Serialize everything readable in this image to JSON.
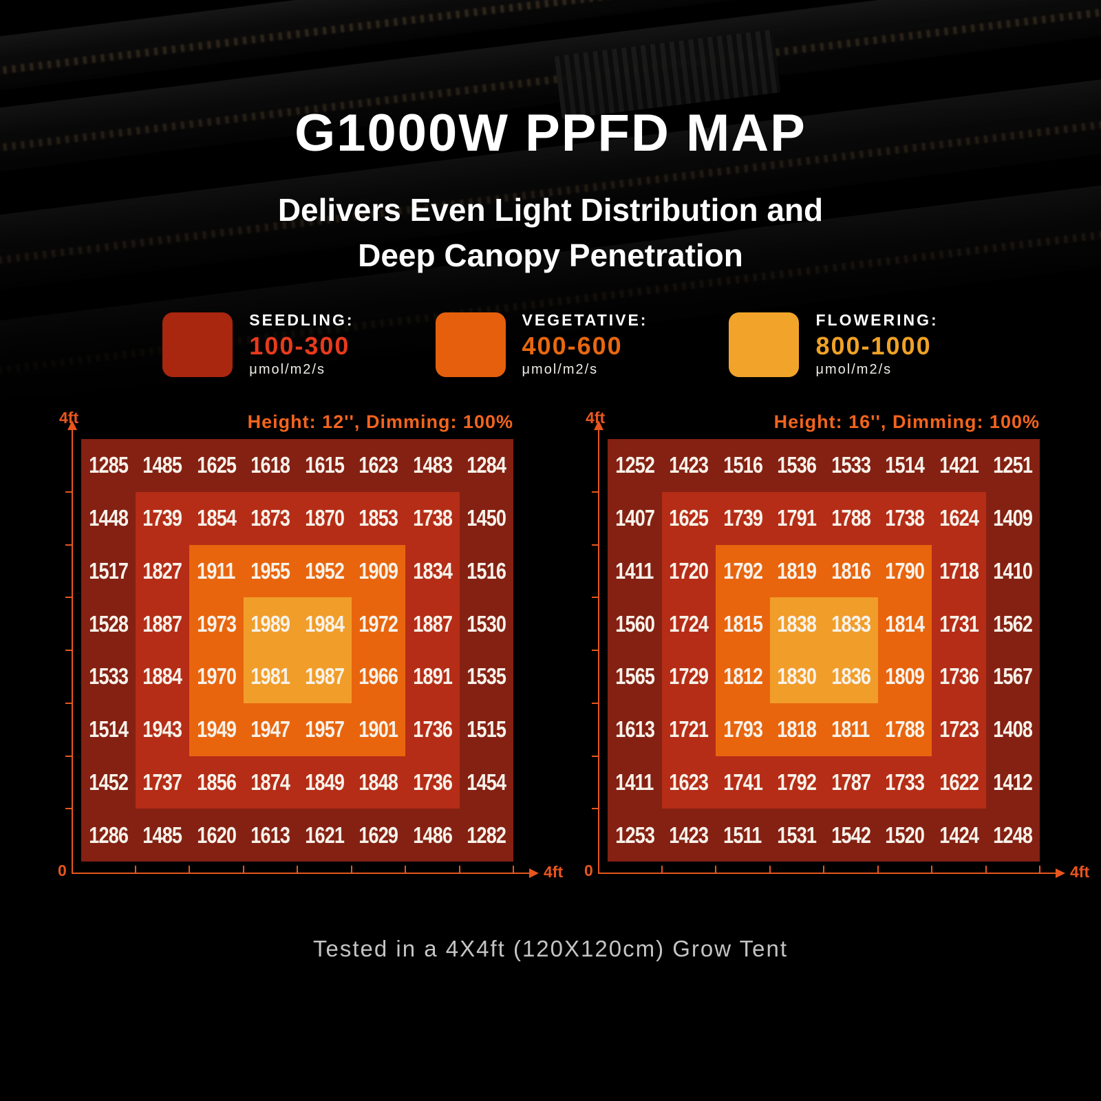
{
  "page": {
    "title": "G1000W PPFD MAP",
    "subtitle_line1": "Delivers Even Light Distribution and",
    "subtitle_line2": "Deep Canopy Penetration",
    "footer_note": "Tested in a 4X4ft (120X120cm) Grow Tent"
  },
  "legend": {
    "items": [
      {
        "label": "SEEDLING:",
        "range": "100-300",
        "unit": "μmol/m2/s",
        "swatch_color": "#a9260f",
        "range_color": "#e83a1c"
      },
      {
        "label": "VEGETATIVE:",
        "range": "400-600",
        "unit": "μmol/m2/s",
        "swatch_color": "#e55f0d",
        "range_color": "#e8670f"
      },
      {
        "label": "FLOWERING:",
        "range": "800-1000",
        "unit": "μmol/m2/s",
        "swatch_color": "#f2a42a",
        "range_color": "#f0a226"
      }
    ]
  },
  "axes": {
    "y_max_label": "4ft",
    "origin_label": "0",
    "x_max_label": "4ft"
  },
  "chart_data": [
    {
      "type": "heatmap",
      "title": "Height: 12'', Dimming: 100%",
      "unit": "μmol/m2/s",
      "grid_size": "8x8",
      "x_axis": {
        "min_label": "0",
        "max_label": "4ft"
      },
      "y_axis": {
        "min_label": "0",
        "max_label": "4ft"
      },
      "color_zones": [
        {
          "zone": "outer",
          "color": "#842113"
        },
        {
          "zone": "ring2",
          "color": "#b52d17"
        },
        {
          "zone": "ring3",
          "color": "#e8650e"
        },
        {
          "zone": "center",
          "color": "#f19d29"
        }
      ],
      "rows": [
        [
          1285,
          1485,
          1625,
          1618,
          1615,
          1623,
          1483,
          1284
        ],
        [
          1448,
          1739,
          1854,
          1873,
          1870,
          1853,
          1738,
          1450
        ],
        [
          1517,
          1827,
          1911,
          1955,
          1952,
          1909,
          1834,
          1516
        ],
        [
          1528,
          1887,
          1973,
          1989,
          1984,
          1972,
          1887,
          1530
        ],
        [
          1533,
          1884,
          1970,
          1981,
          1987,
          1966,
          1891,
          1535
        ],
        [
          1514,
          1943,
          1949,
          1947,
          1957,
          1901,
          1736,
          1515
        ],
        [
          1452,
          1737,
          1856,
          1874,
          1849,
          1848,
          1736,
          1454
        ],
        [
          1286,
          1485,
          1620,
          1613,
          1621,
          1629,
          1486,
          1282
        ]
      ]
    },
    {
      "type": "heatmap",
      "title": "Height: 16'', Dimming: 100%",
      "unit": "μmol/m2/s",
      "grid_size": "8x8",
      "x_axis": {
        "min_label": "0",
        "max_label": "4ft"
      },
      "y_axis": {
        "min_label": "0",
        "max_label": "4ft"
      },
      "color_zones": [
        {
          "zone": "outer",
          "color": "#842113"
        },
        {
          "zone": "ring2",
          "color": "#b52d17"
        },
        {
          "zone": "ring3",
          "color": "#e8650e"
        },
        {
          "zone": "center",
          "color": "#f19d29"
        }
      ],
      "rows": [
        [
          1252,
          1423,
          1516,
          1536,
          1533,
          1514,
          1421,
          1251
        ],
        [
          1407,
          1625,
          1739,
          1791,
          1788,
          1738,
          1624,
          1409
        ],
        [
          1411,
          1720,
          1792,
          1819,
          1816,
          1790,
          1718,
          1410
        ],
        [
          1560,
          1724,
          1815,
          1838,
          1833,
          1814,
          1731,
          1562
        ],
        [
          1565,
          1729,
          1812,
          1830,
          1836,
          1809,
          1736,
          1567
        ],
        [
          1613,
          1721,
          1793,
          1818,
          1811,
          1788,
          1723,
          1408
        ],
        [
          1411,
          1623,
          1741,
          1792,
          1787,
          1733,
          1622,
          1412
        ],
        [
          1253,
          1423,
          1511,
          1531,
          1542,
          1520,
          1424,
          1248
        ]
      ]
    }
  ],
  "colors": {
    "page_bg": "#000000",
    "title_text": "#ffffff",
    "accent_orange": "#f2641e",
    "axis": "#e8561e",
    "map_outer": "#842113",
    "map_ring2": "#b52d17",
    "map_ring3": "#e8650e",
    "map_center": "#f19d29",
    "cell_text": "#f7f2ea",
    "footer_text": "#c4c4c4"
  }
}
